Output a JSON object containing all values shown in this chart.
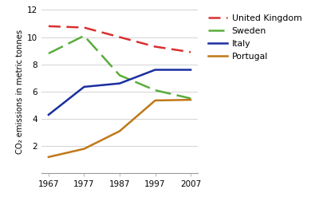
{
  "years": [
    1967,
    1977,
    1987,
    1997,
    2007
  ],
  "united_kingdom": [
    10.8,
    10.7,
    10.0,
    9.3,
    8.9
  ],
  "sweden": [
    8.8,
    10.1,
    7.2,
    6.1,
    5.5
  ],
  "italy": [
    4.3,
    6.35,
    6.6,
    7.6,
    7.6
  ],
  "portugal": [
    1.2,
    1.8,
    3.1,
    5.35,
    5.4
  ],
  "colors": {
    "united_kingdom": "#d93030",
    "sweden": "#5aad3c",
    "italy": "#1a2ea0",
    "portugal": "#c07818"
  },
  "ylabel": "CO₂ emissions in metric tonnes",
  "ylim": [
    0,
    12
  ],
  "yticks": [
    0,
    2,
    4,
    6,
    8,
    10,
    12
  ],
  "background_color": "#ffffff",
  "legend_labels": [
    "United Kingdom",
    "Sweden",
    "Italy",
    "Portugal"
  ]
}
